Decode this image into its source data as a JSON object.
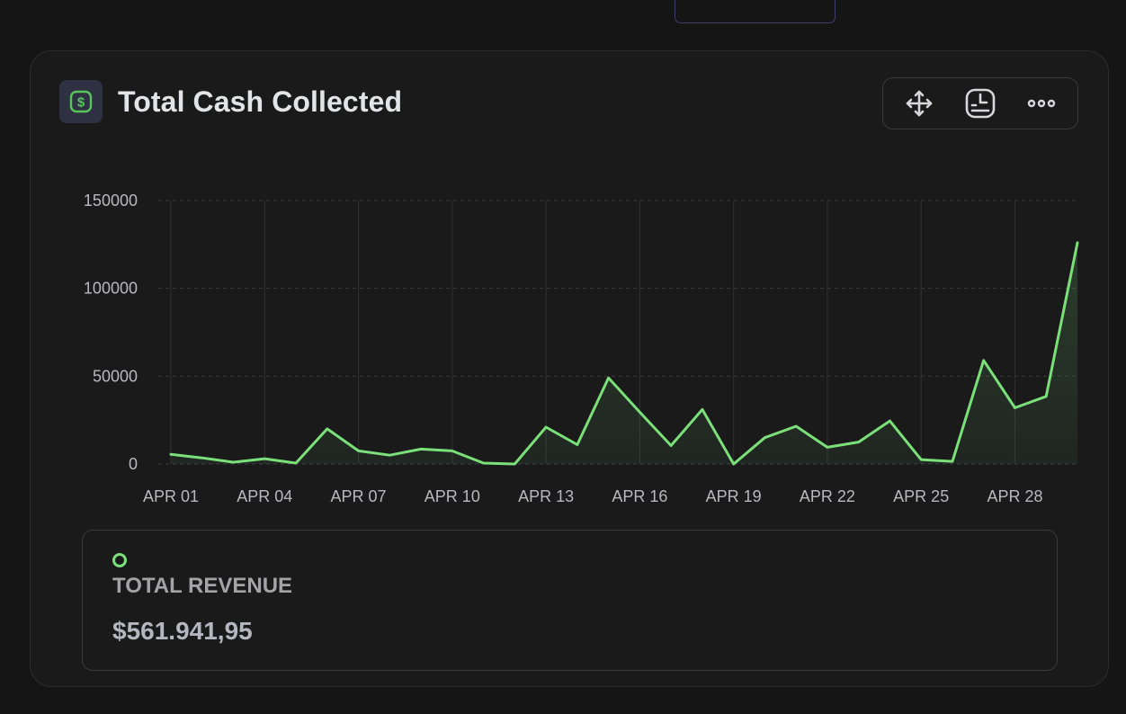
{
  "card": {
    "title": "Total Cash Collected",
    "icon": "dollar-icon",
    "accent_color": "#7be07a",
    "toolbar": {
      "move_icon": "move-icon",
      "clock_icon": "clock-icon",
      "more_icon": "more-icon"
    }
  },
  "summary": {
    "label": "TOTAL REVENUE",
    "value": "$561.941,95"
  },
  "chart_data": {
    "type": "area",
    "title": "",
    "xlabel": "",
    "ylabel": "",
    "ylim": [
      0,
      150000
    ],
    "y_ticks": [
      "150000",
      "100000",
      "50000",
      "0"
    ],
    "x_tick_labels": [
      "APR 01",
      "APR 04",
      "APR 07",
      "APR 10",
      "APR 13",
      "APR 16",
      "APR 19",
      "APR 22",
      "APR 25",
      "APR 28"
    ],
    "grid": true,
    "line_color": "#7be07a",
    "x": [
      "APR 01",
      "APR 02",
      "APR 03",
      "APR 04",
      "APR 05",
      "APR 06",
      "APR 07",
      "APR 08",
      "APR 09",
      "APR 10",
      "APR 11",
      "APR 12",
      "APR 13",
      "APR 14",
      "APR 15",
      "APR 16",
      "APR 17",
      "APR 18",
      "APR 19",
      "APR 20",
      "APR 21",
      "APR 22",
      "APR 23",
      "APR 24",
      "APR 25",
      "APR 26",
      "APR 27",
      "APR 28",
      "APR 29",
      "APR 30"
    ],
    "series": [
      {
        "values": [
          5500,
          3500,
          1000,
          3000,
          500,
          20000,
          7500,
          5000,
          8500,
          7500,
          500,
          0,
          21000,
          11000,
          49000,
          29500,
          10500,
          31000,
          0,
          15000,
          21500,
          9500,
          12500,
          24500,
          2500,
          1500,
          59000,
          32000,
          38500,
          126000
        ]
      }
    ]
  }
}
